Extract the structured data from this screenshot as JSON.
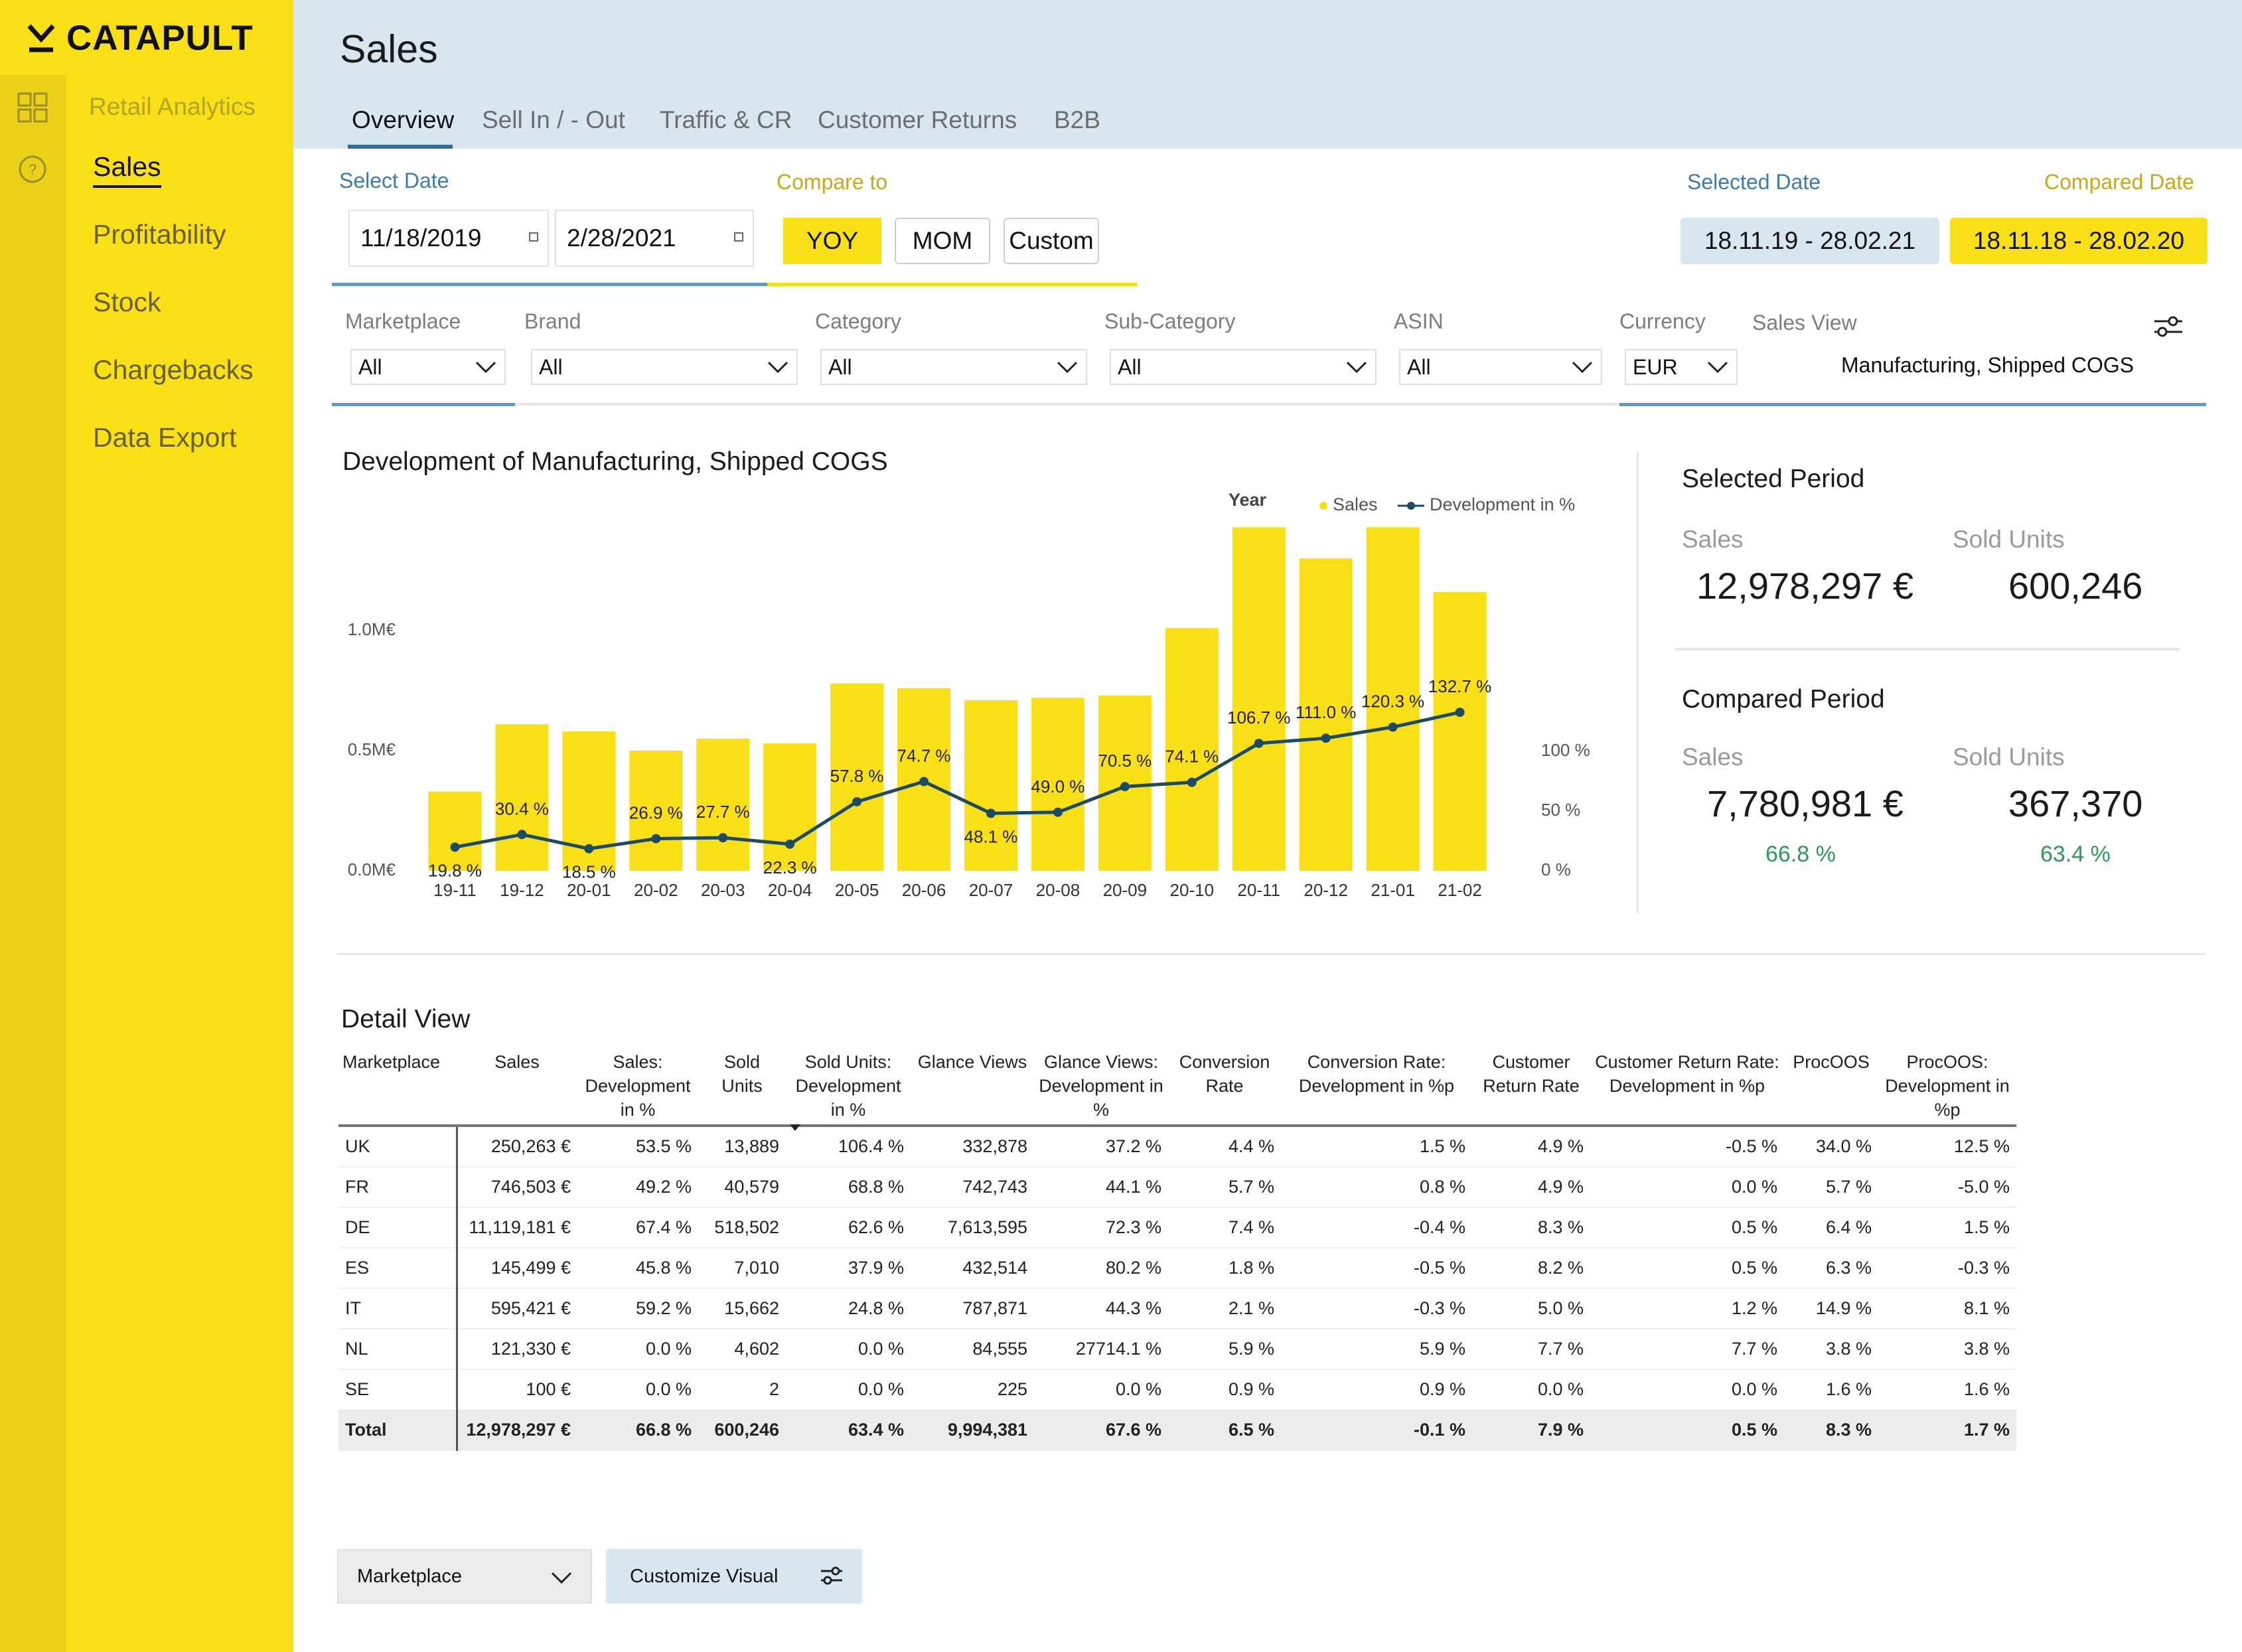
{
  "brand": {
    "name": "CATAPULT"
  },
  "sidebar": {
    "app_title": "Retail Analytics",
    "items": [
      {
        "label": "Sales",
        "active": true
      },
      {
        "label": "Profitability"
      },
      {
        "label": "Stock"
      },
      {
        "label": "Chargebacks"
      },
      {
        "label": "Data Export"
      }
    ],
    "icons": [
      "grid-icon",
      "help-icon"
    ]
  },
  "header": {
    "title": "Sales",
    "tabs": [
      {
        "label": "Overview",
        "active": true
      },
      {
        "label": "Sell In / - Out"
      },
      {
        "label": "Traffic & CR"
      },
      {
        "label": "Customer Returns"
      },
      {
        "label": "B2B"
      }
    ]
  },
  "date_controls": {
    "select_date_label": "Select Date",
    "start_date": "11/18/2019",
    "end_date": "2/28/2021",
    "compare_label": "Compare to",
    "compare_options": [
      "YOY",
      "MOM",
      "Custom"
    ],
    "compare_selected": "YOY",
    "selected_date_label": "Selected Date",
    "selected_date_value": "18.11.19 - 28.02.21",
    "compared_date_label": "Compared Date",
    "compared_date_value": "18.11.18 - 28.02.20"
  },
  "filters": {
    "marketplace": {
      "label": "Marketplace",
      "value": "All"
    },
    "brand": {
      "label": "Brand",
      "value": "All"
    },
    "category": {
      "label": "Category",
      "value": "All"
    },
    "subcategory": {
      "label": "Sub-Category",
      "value": "All"
    },
    "asin": {
      "label": "ASIN",
      "value": "All"
    },
    "currency": {
      "label": "Currency",
      "value": "EUR"
    },
    "sales_view": {
      "label": "Sales View",
      "value": "Manufacturing, Shipped COGS"
    }
  },
  "chart_data": {
    "type": "bar",
    "title": "Development of Manufacturing, Shipped COGS",
    "legend_title": "Year",
    "legend_position": "top-right",
    "categories": [
      "19-11",
      "19-12",
      "20-01",
      "20-02",
      "20-03",
      "20-04",
      "20-05",
      "20-06",
      "20-07",
      "20-08",
      "20-09",
      "20-10",
      "20-11",
      "20-12",
      "21-01",
      "21-02"
    ],
    "series": [
      {
        "name": "Sales",
        "type": "bar",
        "axis": "left",
        "color": "#f8df16",
        "values": [
          0.33,
          0.61,
          0.58,
          0.5,
          0.55,
          0.53,
          0.78,
          0.76,
          0.71,
          0.72,
          0.73,
          1.01,
          1.43,
          1.3,
          1.43,
          1.16
        ]
      },
      {
        "name": "Development in %",
        "type": "line",
        "axis": "right",
        "color": "#1d4a63",
        "values": [
          19.8,
          30.4,
          18.5,
          26.9,
          27.7,
          22.3,
          57.8,
          74.7,
          48.1,
          49.0,
          70.5,
          74.1,
          106.7,
          111.0,
          120.3,
          132.7
        ],
        "labels": [
          "19.8 %",
          "30.4 %",
          "18.5 %",
          "26.9 %",
          "27.7 %",
          "22.3 %",
          "57.8 %",
          "74.7 %",
          "48.1 %",
          "49.0 %",
          "70.5 %",
          "74.1 %",
          "106.7 %",
          "111.0 %",
          "120.3 %",
          "132.7 %"
        ]
      }
    ],
    "y_left": {
      "ticks": [
        "0.0M€",
        "0.5M€",
        "1.0M€"
      ],
      "tick_values": [
        0,
        0.5,
        1.0
      ],
      "range": [
        0,
        1.5
      ]
    },
    "y_right": {
      "ticks": [
        "0 %",
        "50 %",
        "100 %"
      ],
      "tick_values": [
        0,
        50,
        100
      ],
      "range": [
        0,
        150
      ]
    }
  },
  "kpis": {
    "selected_title": "Selected Period",
    "compared_title": "Compared Period",
    "sales_label": "Sales",
    "units_label": "Sold Units",
    "selected_sales": "12,978,297 €",
    "selected_units": "600,246",
    "compared_sales": "7,780,981 €",
    "compared_units": "367,370",
    "sales_change": "66.8 %",
    "units_change": "63.4 %",
    "positive_color": "#2c9a57"
  },
  "detail": {
    "title": "Detail View",
    "columns": [
      "Marketplace",
      "Sales",
      "Sales: Development in %",
      "Sold Units",
      "Sold Units: Development in %",
      "Glance Views",
      "Glance Views: Development in %",
      "Conversion Rate",
      "Conversion Rate: Development in %p",
      "Customer Return Rate",
      "Customer Return Rate: Development in %p",
      "ProcOOS",
      "ProcOOS: Development in %p"
    ],
    "rows": [
      [
        "UK",
        "250,263 €",
        "53.5 %",
        "13,889",
        "106.4 %",
        "332,878",
        "37.2 %",
        "4.4 %",
        "1.5 %",
        "4.9 %",
        "-0.5 %",
        "34.0 %",
        "12.5 %"
      ],
      [
        "FR",
        "746,503 €",
        "49.2 %",
        "40,579",
        "68.8 %",
        "742,743",
        "44.1 %",
        "5.7 %",
        "0.8 %",
        "4.9 %",
        "0.0 %",
        "5.7 %",
        "-5.0 %"
      ],
      [
        "DE",
        "11,119,181 €",
        "67.4 %",
        "518,502",
        "62.6 %",
        "7,613,595",
        "72.3 %",
        "7.4 %",
        "-0.4 %",
        "8.3 %",
        "0.5 %",
        "6.4 %",
        "1.5 %"
      ],
      [
        "ES",
        "145,499 €",
        "45.8 %",
        "7,010",
        "37.9 %",
        "432,514",
        "80.2 %",
        "1.8 %",
        "-0.5 %",
        "8.2 %",
        "0.5 %",
        "6.3 %",
        "-0.3 %"
      ],
      [
        "IT",
        "595,421 €",
        "59.2 %",
        "15,662",
        "24.8 %",
        "787,871",
        "44.3 %",
        "2.1 %",
        "-0.3 %",
        "5.0 %",
        "1.2 %",
        "14.9 %",
        "8.1 %"
      ],
      [
        "NL",
        "121,330 €",
        "0.0 %",
        "4,602",
        "0.0 %",
        "84,555",
        "27714.1 %",
        "5.9 %",
        "5.9 %",
        "7.7 %",
        "7.7 %",
        "3.8 %",
        "3.8 %"
      ],
      [
        "SE",
        "100 €",
        "0.0 %",
        "2",
        "0.0 %",
        "225",
        "0.0 %",
        "0.9 %",
        "0.9 %",
        "0.0 %",
        "0.0 %",
        "1.6 %",
        "1.6 %"
      ]
    ],
    "total": [
      "Total",
      "12,978,297 €",
      "66.8 %",
      "600,246",
      "63.4 %",
      "9,994,381",
      "67.6 %",
      "6.5 %",
      "-0.1 %",
      "7.9 %",
      "0.5 %",
      "8.3 %",
      "1.7 %"
    ]
  },
  "footer": {
    "select_value": "Marketplace",
    "customize_label": "Customize Visual"
  }
}
